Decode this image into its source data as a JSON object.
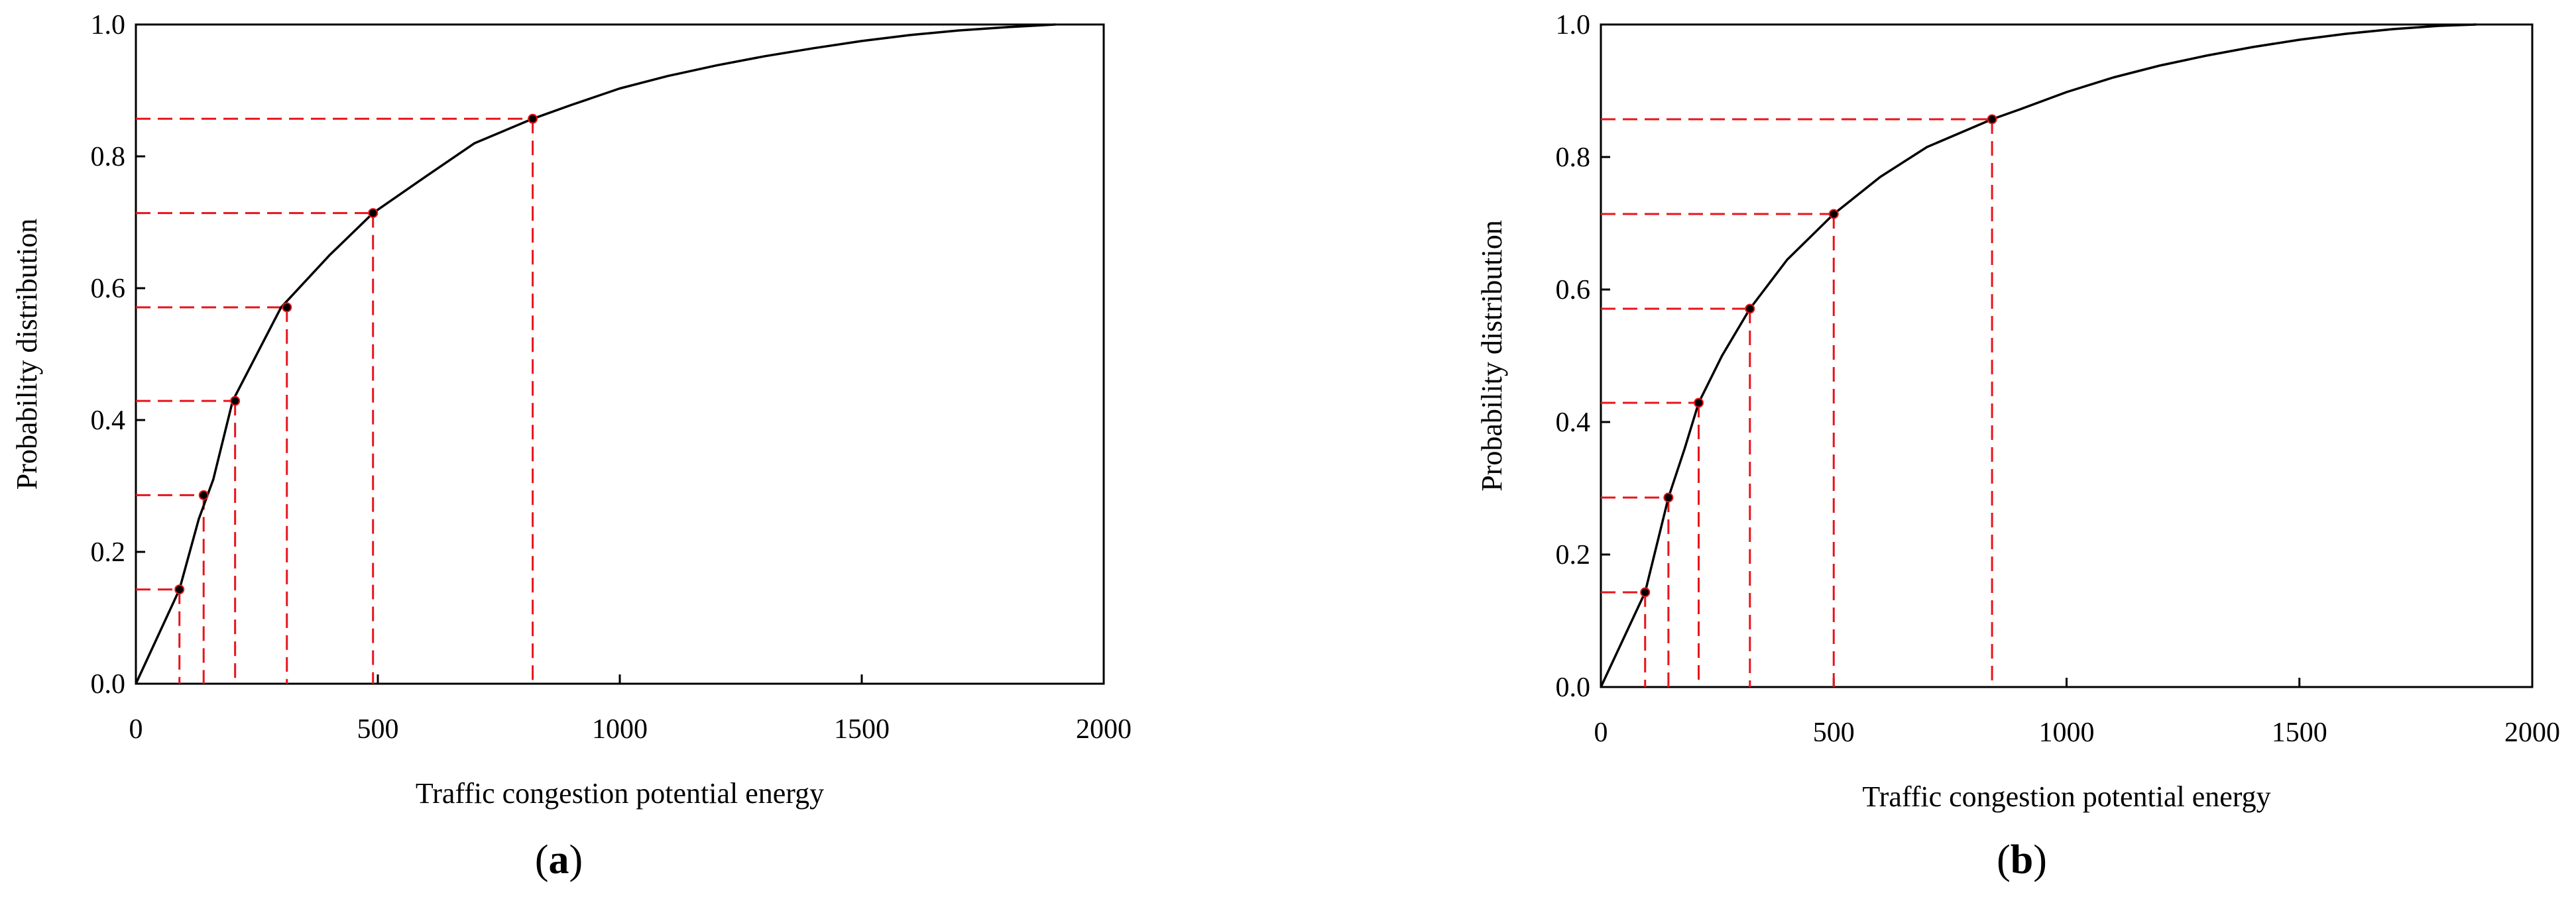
{
  "figure": {
    "panels": [
      {
        "label_open": "(",
        "label_letter": "a",
        "label_close": ")"
      },
      {
        "label_open": "(",
        "label_letter": "b",
        "label_close": ")"
      }
    ]
  },
  "chart_data": [
    {
      "type": "line",
      "title": "",
      "xlabel": "Traffic congestion potential energy",
      "ylabel": "Probability distribution",
      "xlim": [
        0,
        2000
      ],
      "ylim": [
        0,
        1.0
      ],
      "xticks": [
        "0",
        "500",
        "1000",
        "1500",
        "2000"
      ],
      "yticks": [
        "0.0",
        "0.2",
        "0.4",
        "0.6",
        "0.8",
        "1.0"
      ],
      "grid": false,
      "curve_color": "#000000",
      "guide_color": "#e8141b",
      "series": [
        {
          "x": [
            0,
            90,
            130,
            160,
            200,
            250,
            300,
            400,
            490,
            600,
            700,
            820,
            900,
            1000,
            1100,
            1200,
            1300,
            1400,
            1500,
            1600,
            1700,
            1800,
            1900
          ],
          "y": [
            0.0,
            0.143,
            0.25,
            0.31,
            0.429,
            0.5,
            0.571,
            0.65,
            0.714,
            0.77,
            0.82,
            0.857,
            0.878,
            0.903,
            0.922,
            0.938,
            0.952,
            0.964,
            0.975,
            0.984,
            0.991,
            0.996,
            1.0
          ]
        }
      ],
      "markers": [
        {
          "x": 90,
          "y": 0.143
        },
        {
          "x": 140,
          "y": 0.286
        },
        {
          "x": 205,
          "y": 0.429
        },
        {
          "x": 312,
          "y": 0.571
        },
        {
          "x": 490,
          "y": 0.714
        },
        {
          "x": 820,
          "y": 0.857
        }
      ]
    },
    {
      "type": "line",
      "title": "",
      "xlabel": "Traffic congestion potential energy",
      "ylabel": "Probability distribution",
      "xlim": [
        0,
        2000
      ],
      "ylim": [
        0,
        1.0
      ],
      "xticks": [
        "0",
        "500",
        "1000",
        "1500",
        "2000"
      ],
      "yticks": [
        "0.0",
        "0.2",
        "0.4",
        "0.6",
        "0.8",
        "1.0"
      ],
      "grid": false,
      "curve_color": "#000000",
      "guide_color": "#e8141b",
      "series": [
        {
          "x": [
            0,
            95,
            145,
            180,
            210,
            260,
            320,
            400,
            500,
            600,
            700,
            840,
            900,
            1000,
            1100,
            1200,
            1300,
            1400,
            1500,
            1600,
            1700,
            1800,
            1880
          ],
          "y": [
            0.0,
            0.143,
            0.286,
            0.36,
            0.429,
            0.5,
            0.571,
            0.645,
            0.714,
            0.77,
            0.815,
            0.857,
            0.872,
            0.898,
            0.92,
            0.938,
            0.953,
            0.966,
            0.977,
            0.986,
            0.993,
            0.998,
            1.0
          ]
        }
      ],
      "markers": [
        {
          "x": 95,
          "y": 0.143
        },
        {
          "x": 145,
          "y": 0.286
        },
        {
          "x": 210,
          "y": 0.429
        },
        {
          "x": 320,
          "y": 0.571
        },
        {
          "x": 500,
          "y": 0.714
        },
        {
          "x": 840,
          "y": 0.857
        }
      ]
    }
  ]
}
